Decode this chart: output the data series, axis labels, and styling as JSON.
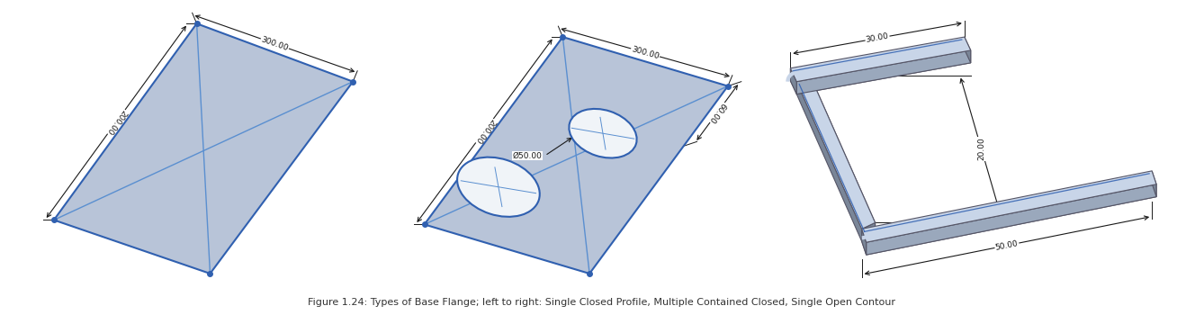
{
  "bg_color": "#ffffff",
  "panel_fill": "#b8c4d8",
  "panel_edge": "#3060b0",
  "panel_edge_width": 1.5,
  "diag_line_color": "#5a8fd0",
  "dim_line_color": "#1a1a1a",
  "dim_text_color": "#1a1a1a",
  "dim_fontsize": 6.5,
  "title": "Figure 1.24: Types of Base Flange; left to right: Single Closed Profile, Multiple Contained Closed, Single Open Contour",
  "title_fontsize": 8,
  "shape3_fill_top": "#c8d5e8",
  "shape3_fill_side_dark": "#7a8698",
  "shape3_fill_side_med": "#9aa8bc",
  "shape3_edge": "#555566"
}
